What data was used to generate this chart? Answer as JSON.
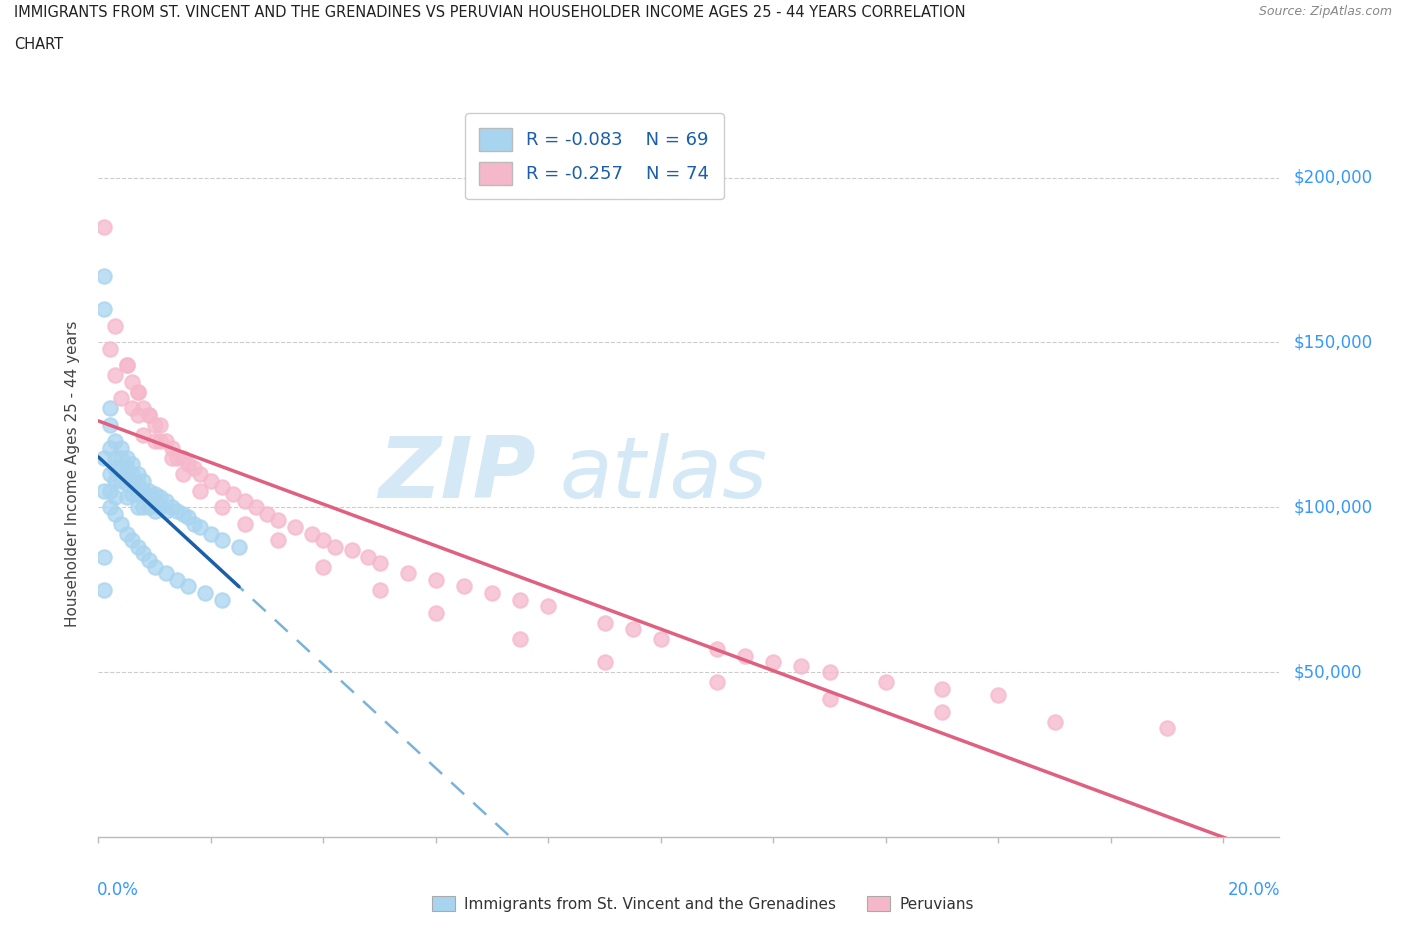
{
  "title_line1": "IMMIGRANTS FROM ST. VINCENT AND THE GRENADINES VS PERUVIAN HOUSEHOLDER INCOME AGES 25 - 44 YEARS CORRELATION",
  "title_line2": "CHART",
  "source": "Source: ZipAtlas.com",
  "ylabel": "Householder Income Ages 25 - 44 years",
  "ytick_values": [
    50000,
    100000,
    150000,
    200000
  ],
  "ytick_labels": [
    "$50,000",
    "$100,000",
    "$150,000",
    "$200,000"
  ],
  "xlim": [
    0.0,
    0.21
  ],
  "ylim": [
    0,
    220000
  ],
  "legend_r1": "R = -0.083",
  "legend_n1": "N = 69",
  "legend_r2": "R = -0.257",
  "legend_n2": "N = 74",
  "color_blue_fill": "#a8d4ef",
  "color_pink_fill": "#f5b8cb",
  "color_blue_line": "#1a5fa8",
  "color_pink_line": "#e06080",
  "color_blue_dash": "#7ab3d8",
  "watermark_zip": "#c5dff0",
  "blue_x": [
    0.001,
    0.001,
    0.001,
    0.001,
    0.002,
    0.002,
    0.002,
    0.002,
    0.002,
    0.003,
    0.003,
    0.003,
    0.003,
    0.003,
    0.004,
    0.004,
    0.004,
    0.004,
    0.005,
    0.005,
    0.005,
    0.005,
    0.005,
    0.006,
    0.006,
    0.006,
    0.006,
    0.007,
    0.007,
    0.007,
    0.007,
    0.008,
    0.008,
    0.008,
    0.009,
    0.009,
    0.009,
    0.01,
    0.01,
    0.01,
    0.011,
    0.011,
    0.012,
    0.012,
    0.013,
    0.014,
    0.015,
    0.016,
    0.017,
    0.018,
    0.02,
    0.022,
    0.025,
    0.001,
    0.001,
    0.002,
    0.003,
    0.004,
    0.005,
    0.006,
    0.007,
    0.008,
    0.009,
    0.01,
    0.012,
    0.014,
    0.016,
    0.019,
    0.022
  ],
  "blue_y": [
    170000,
    160000,
    115000,
    105000,
    130000,
    125000,
    118000,
    110000,
    100000,
    120000,
    115000,
    112000,
    108000,
    103000,
    118000,
    115000,
    112000,
    108000,
    115000,
    112000,
    110000,
    107000,
    103000,
    113000,
    110000,
    108000,
    104000,
    110000,
    107000,
    104000,
    100000,
    108000,
    105000,
    100000,
    105000,
    103000,
    100000,
    104000,
    102000,
    99000,
    103000,
    100000,
    102000,
    99000,
    100000,
    99000,
    98000,
    97000,
    95000,
    94000,
    92000,
    90000,
    88000,
    85000,
    75000,
    105000,
    98000,
    95000,
    92000,
    90000,
    88000,
    86000,
    84000,
    82000,
    80000,
    78000,
    76000,
    74000,
    72000
  ],
  "pink_x": [
    0.001,
    0.002,
    0.003,
    0.004,
    0.005,
    0.006,
    0.006,
    0.007,
    0.007,
    0.008,
    0.008,
    0.009,
    0.01,
    0.01,
    0.011,
    0.012,
    0.013,
    0.014,
    0.015,
    0.016,
    0.017,
    0.018,
    0.02,
    0.022,
    0.024,
    0.026,
    0.028,
    0.03,
    0.032,
    0.035,
    0.038,
    0.04,
    0.042,
    0.045,
    0.048,
    0.05,
    0.055,
    0.06,
    0.065,
    0.07,
    0.075,
    0.08,
    0.09,
    0.095,
    0.1,
    0.11,
    0.115,
    0.12,
    0.125,
    0.13,
    0.14,
    0.15,
    0.16,
    0.003,
    0.005,
    0.007,
    0.009,
    0.011,
    0.013,
    0.015,
    0.018,
    0.022,
    0.026,
    0.032,
    0.04,
    0.05,
    0.06,
    0.075,
    0.09,
    0.11,
    0.13,
    0.15,
    0.17,
    0.19
  ],
  "pink_y": [
    185000,
    148000,
    140000,
    133000,
    143000,
    138000,
    130000,
    135000,
    128000,
    130000,
    122000,
    128000,
    125000,
    120000,
    125000,
    120000,
    118000,
    115000,
    115000,
    113000,
    112000,
    110000,
    108000,
    106000,
    104000,
    102000,
    100000,
    98000,
    96000,
    94000,
    92000,
    90000,
    88000,
    87000,
    85000,
    83000,
    80000,
    78000,
    76000,
    74000,
    72000,
    70000,
    65000,
    63000,
    60000,
    57000,
    55000,
    53000,
    52000,
    50000,
    47000,
    45000,
    43000,
    155000,
    143000,
    135000,
    128000,
    120000,
    115000,
    110000,
    105000,
    100000,
    95000,
    90000,
    82000,
    75000,
    68000,
    60000,
    53000,
    47000,
    42000,
    38000,
    35000,
    33000
  ]
}
